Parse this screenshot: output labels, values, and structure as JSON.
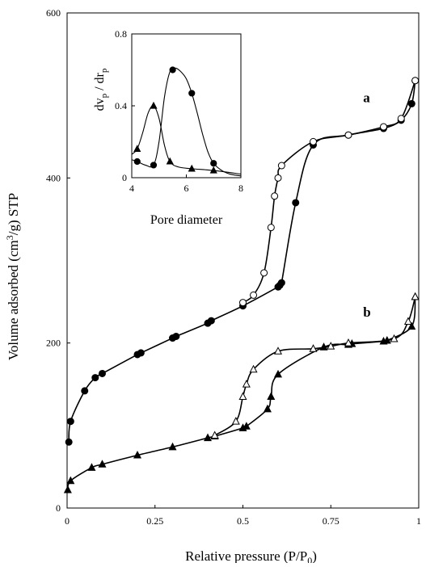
{
  "chart_data": [
    {
      "type": "line",
      "xlabel": "Relative pressure (P/P",
      "xlabel_sub": "0",
      "xlabel_end": ")",
      "ylabel": "Volume adsorbed (cm",
      "ylabel_sup": "3",
      "ylabel_end": "/g) STP",
      "xlim": [
        0,
        1
      ],
      "ylim": [
        0,
        600
      ],
      "x_ticks": [
        0,
        0.25,
        0.5,
        0.75,
        1
      ],
      "x_tick_labels": [
        "0",
        "0.25",
        "0.5",
        "0.75",
        "1"
      ],
      "y_ticks": [
        0,
        200,
        400,
        600
      ],
      "y_tick_labels": [
        "0",
        "200",
        "400",
        "600"
      ],
      "grid": false,
      "series": [
        {
          "name": "a",
          "marker": "filled-circle",
          "x": [
            0.005,
            0.01,
            0.05,
            0.08,
            0.1,
            0.2,
            0.21,
            0.3,
            0.31,
            0.4,
            0.41,
            0.5,
            0.6,
            0.605,
            0.61,
            0.65,
            0.7,
            0.8,
            0.9,
            0.95,
            0.98,
            0.99
          ],
          "y": [
            80,
            105,
            142,
            158,
            163,
            186,
            188,
            206,
            208,
            224,
            227,
            245,
            268,
            270,
            273,
            370,
            440,
            452,
            460,
            470,
            490,
            518
          ]
        },
        {
          "name": "a",
          "marker": "open-circle",
          "x": [
            0.99,
            0.95,
            0.9,
            0.8,
            0.7,
            0.61,
            0.6,
            0.59,
            0.58,
            0.56,
            0.53,
            0.5
          ],
          "y": [
            518,
            472,
            462,
            452,
            444,
            415,
            400,
            378,
            340,
            285,
            258,
            249
          ]
        },
        {
          "name": "b",
          "marker": "filled-triangle",
          "x": [
            0.002,
            0.01,
            0.07,
            0.1,
            0.2,
            0.3,
            0.4,
            0.42,
            0.5,
            0.51,
            0.57,
            0.58,
            0.6,
            0.73,
            0.8,
            0.81,
            0.9,
            0.91,
            0.98,
            0.99
          ],
          "y": [
            22,
            33,
            49,
            53,
            64,
            74,
            85,
            87,
            97,
            99,
            120,
            135,
            162,
            195,
            198,
            199,
            202,
            203,
            220,
            256
          ]
        },
        {
          "name": "b",
          "marker": "open-triangle",
          "x": [
            0.99,
            0.97,
            0.93,
            0.8,
            0.75,
            0.7,
            0.6,
            0.53,
            0.51,
            0.5,
            0.48,
            0.42
          ],
          "y": [
            256,
            226,
            205,
            200,
            196,
            193,
            190,
            168,
            150,
            135,
            105,
            88
          ]
        }
      ],
      "series_labels": [
        {
          "text": "a",
          "x": 0.98,
          "y": 492
        },
        {
          "text": "b",
          "x": 0.98,
          "y": 232
        }
      ]
    },
    {
      "type": "line",
      "xlabel": "Pore diameter",
      "ylabel": "dv",
      "ylabel_sub1": "p",
      "ylabel_mid": " / dr",
      "ylabel_sub2": "p",
      "xlim": [
        4,
        8
      ],
      "ylim": [
        0,
        0.8
      ],
      "x_ticks": [
        4,
        6,
        8
      ],
      "x_tick_labels": [
        "4",
        "6",
        "8"
      ],
      "y_ticks": [
        0,
        0.4,
        0.8
      ],
      "y_tick_labels": [
        "0",
        "0.4",
        "0.8"
      ],
      "grid": false,
      "series": [
        {
          "name": "a",
          "marker": "filled-circle",
          "x": [
            4.2,
            4.8,
            5.5,
            6.2,
            7.0
          ],
          "y": [
            0.09,
            0.07,
            0.6,
            0.47,
            0.08
          ],
          "curve_x": [
            4.0,
            4.2,
            4.5,
            4.8,
            5.0,
            5.2,
            5.4,
            5.6,
            5.8,
            6.0,
            6.2,
            6.4,
            6.6,
            6.8,
            7.0,
            7.3,
            7.6,
            8.0
          ],
          "curve_y": [
            0.1,
            0.09,
            0.07,
            0.07,
            0.2,
            0.45,
            0.59,
            0.61,
            0.59,
            0.55,
            0.47,
            0.36,
            0.24,
            0.14,
            0.08,
            0.04,
            0.02,
            0.01
          ]
        },
        {
          "name": "b",
          "marker": "filled-triangle",
          "x": [
            4.2,
            4.8,
            5.4,
            6.2,
            7.0
          ],
          "y": [
            0.16,
            0.4,
            0.09,
            0.05,
            0.04
          ],
          "curve_x": [
            4.0,
            4.2,
            4.4,
            4.6,
            4.8,
            5.0,
            5.2,
            5.4,
            5.7,
            6.2,
            7.0,
            8.0
          ],
          "curve_y": [
            0.13,
            0.16,
            0.25,
            0.36,
            0.4,
            0.33,
            0.18,
            0.09,
            0.06,
            0.05,
            0.04,
            0.02
          ]
        }
      ]
    }
  ]
}
